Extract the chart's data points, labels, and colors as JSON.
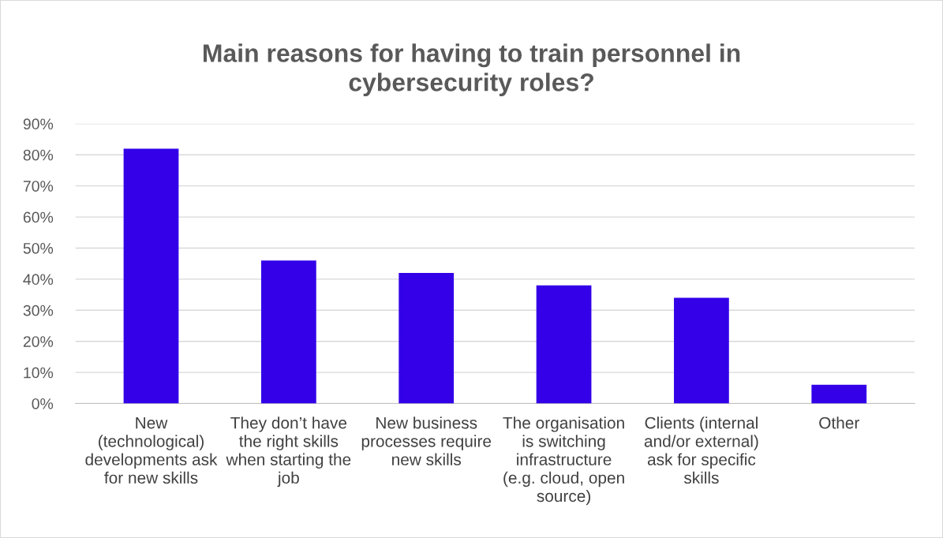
{
  "chart_data": {
    "type": "bar",
    "title": "Main reasons for having to train personnel in cybersecurity roles?",
    "categories": [
      "New (technological) developments ask for new skills",
      "They don’t have the right skills when starting the job",
      "New business processes require new skills",
      "The organisation is switching infrastructure (e.g. cloud, open source)",
      "Clients (internal and/or external) ask for specific skills",
      "Other"
    ],
    "values": [
      82,
      46,
      42,
      38,
      34,
      6
    ],
    "color": "#3300e8",
    "ylim": [
      0,
      90
    ],
    "yticks": [
      {
        "value": 0,
        "label": "0%"
      },
      {
        "value": 10,
        "label": "10%"
      },
      {
        "value": 20,
        "label": "20%"
      },
      {
        "value": 30,
        "label": "30%"
      },
      {
        "value": 40,
        "label": "40%"
      },
      {
        "value": 50,
        "label": "50%"
      },
      {
        "value": 60,
        "label": "60%"
      },
      {
        "value": 70,
        "label": "70%"
      },
      {
        "value": 80,
        "label": "80%"
      },
      {
        "value": 90,
        "label": "90%"
      }
    ],
    "grid": "y"
  }
}
